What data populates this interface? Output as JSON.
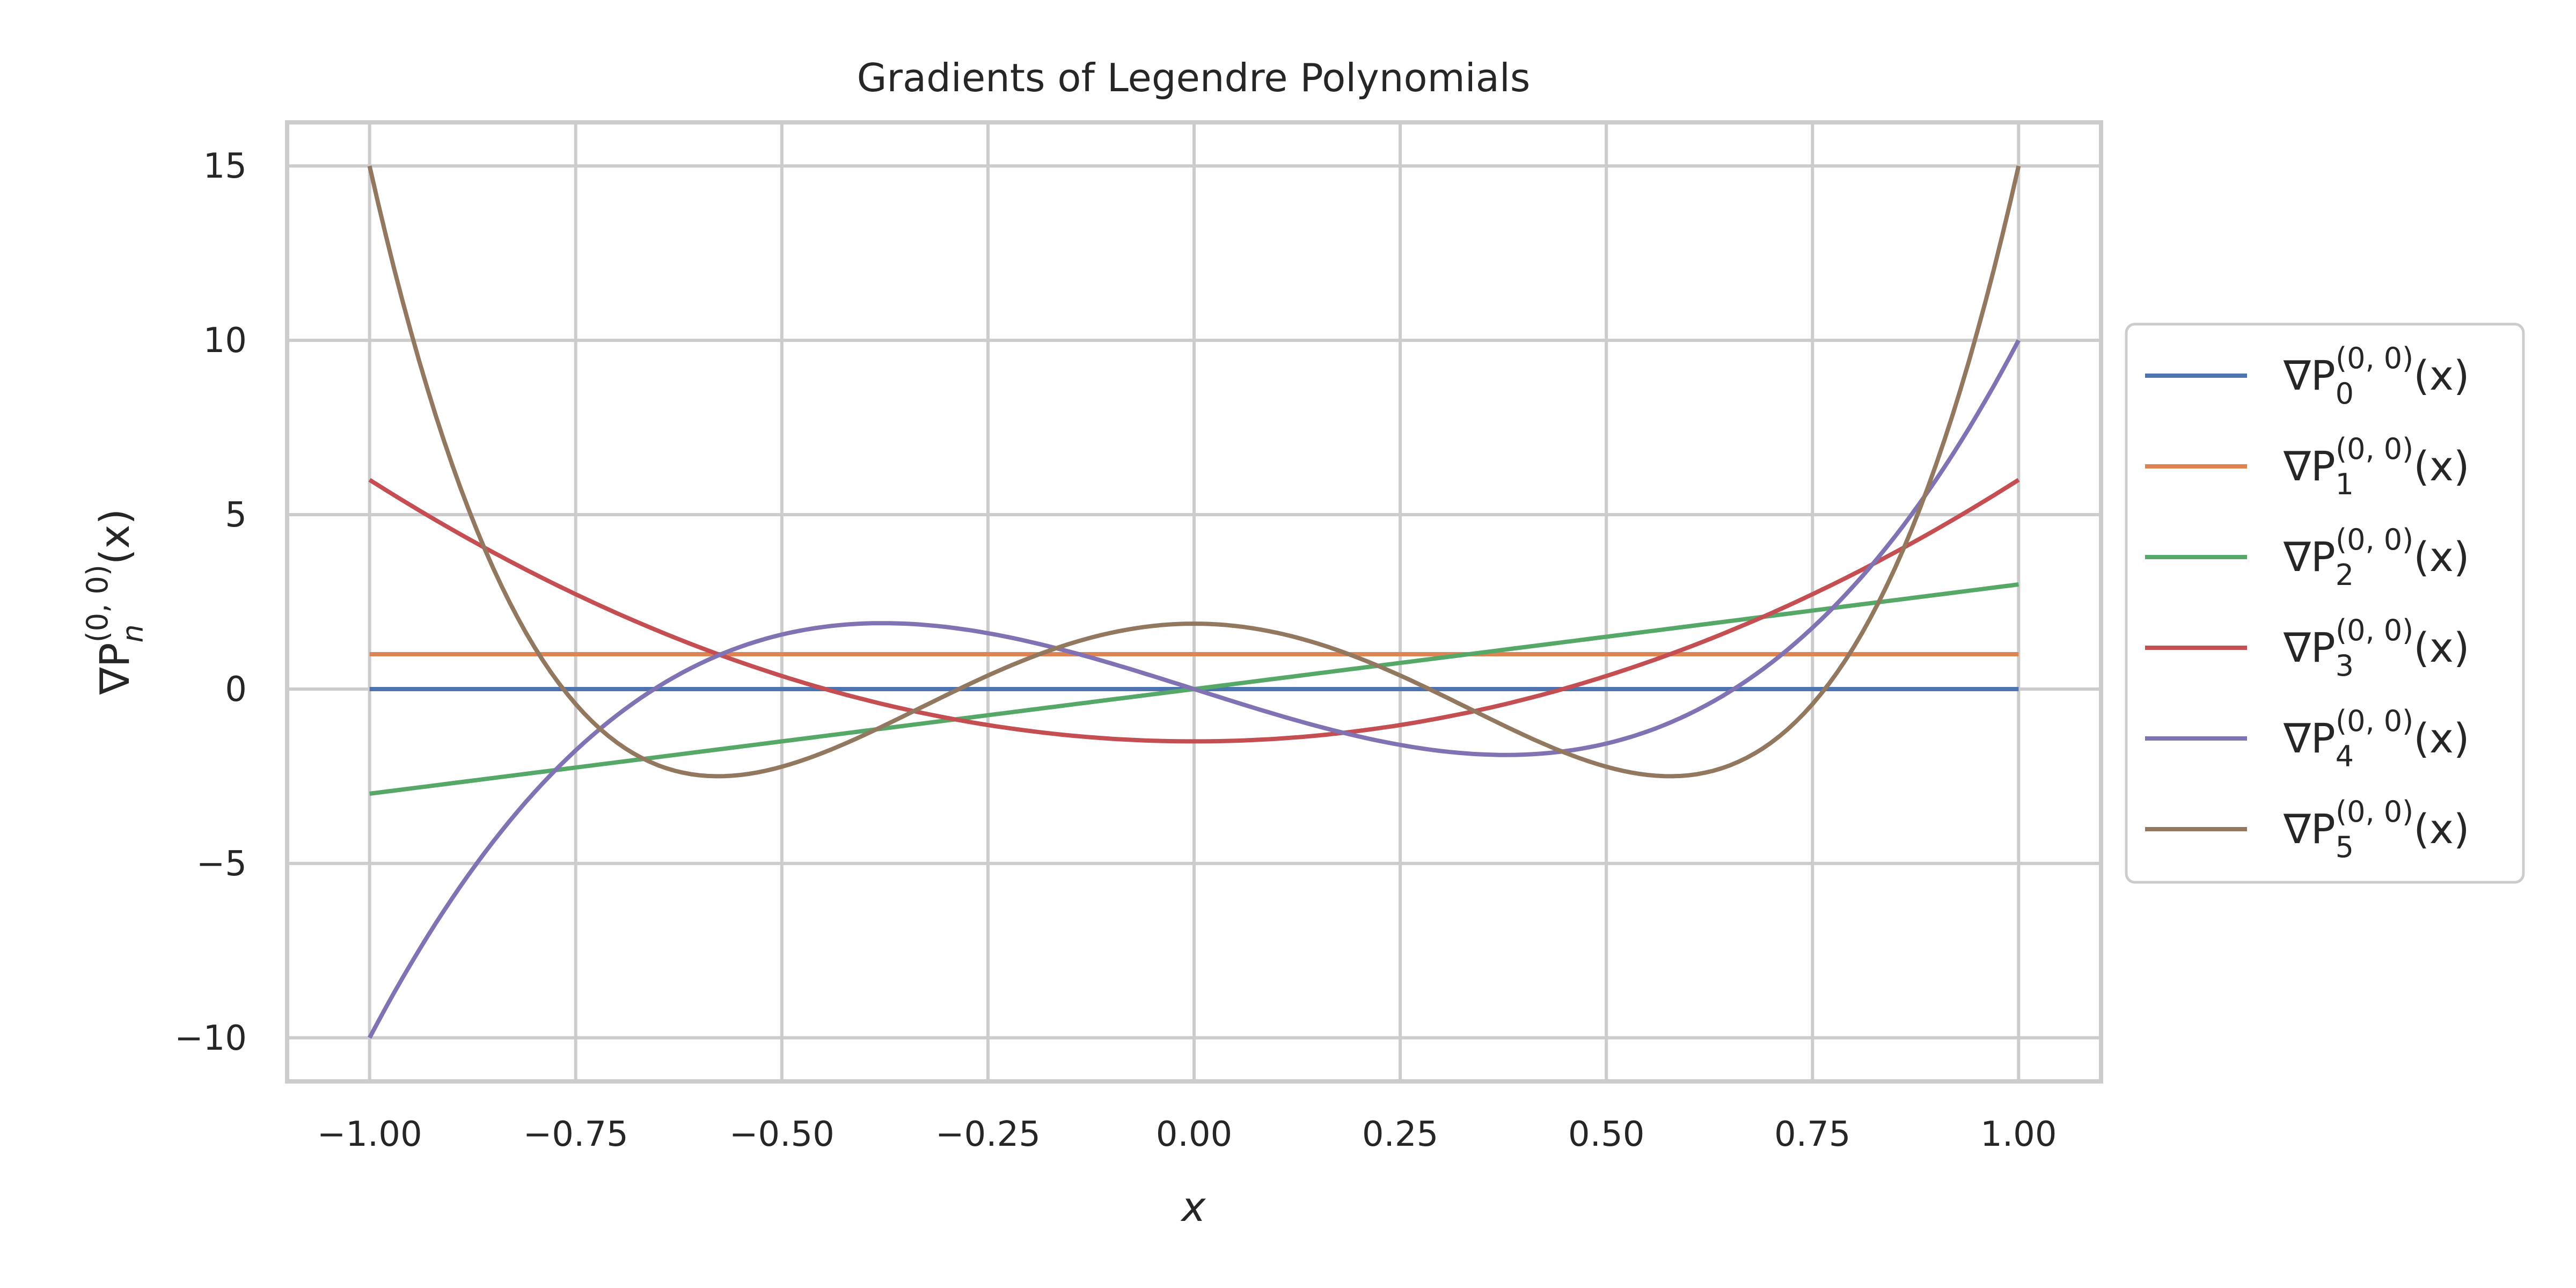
{
  "chart_data": {
    "type": "line",
    "title": "Gradients of Legendre Polynomials",
    "xlabel": "x",
    "ylabel": {
      "base": "∇P",
      "sub": "n",
      "sup": "(0, 0)",
      "tail": "(x)"
    },
    "xlim": [
      -1.1,
      1.1
    ],
    "ylim": [
      -11.25,
      16.25
    ],
    "xticks": [
      -1.0,
      -0.75,
      -0.5,
      -0.25,
      0.0,
      0.25,
      0.5,
      0.75,
      1.0
    ],
    "xtick_labels": [
      "−1.00",
      "−0.75",
      "−0.50",
      "−0.25",
      "0.00",
      "0.25",
      "0.50",
      "0.75",
      "1.00"
    ],
    "yticks": [
      -10,
      -5,
      0,
      5,
      10,
      15
    ],
    "ytick_labels": [
      "−10",
      "−5",
      "0",
      "5",
      "10",
      "15"
    ],
    "grid": true,
    "legend_position": "right, outside plot",
    "x_range": [
      -1.0,
      1.0
    ],
    "series": [
      {
        "name": "∇P0(0,0)(x)",
        "label_sub": "0",
        "label_sup": "(0, 0)",
        "color": "#4c72b0",
        "poly_coeffs": [
          0
        ]
      },
      {
        "name": "∇P1(0,0)(x)",
        "label_sub": "1",
        "label_sup": "(0, 0)",
        "color": "#dd8452",
        "poly_coeffs": [
          1
        ]
      },
      {
        "name": "∇P2(0,0)(x)",
        "label_sub": "2",
        "label_sup": "(0, 0)",
        "color": "#55a868",
        "poly_coeffs": [
          0,
          3
        ]
      },
      {
        "name": "∇P3(0,0)(x)",
        "label_sub": "3",
        "label_sup": "(0, 0)",
        "color": "#c44e52",
        "poly_coeffs": [
          -1.5,
          0,
          7.5
        ]
      },
      {
        "name": "∇P4(0,0)(x)",
        "label_sub": "4",
        "label_sup": "(0, 0)",
        "color": "#8172b3",
        "poly_coeffs": [
          0,
          -7.5,
          0,
          17.5
        ]
      },
      {
        "name": "∇P5(0,0)(x)",
        "label_sub": "5",
        "label_sup": "(0, 0)",
        "color": "#937860",
        "poly_coeffs": [
          1.875,
          0,
          -26.25,
          0,
          39.375
        ]
      }
    ]
  }
}
